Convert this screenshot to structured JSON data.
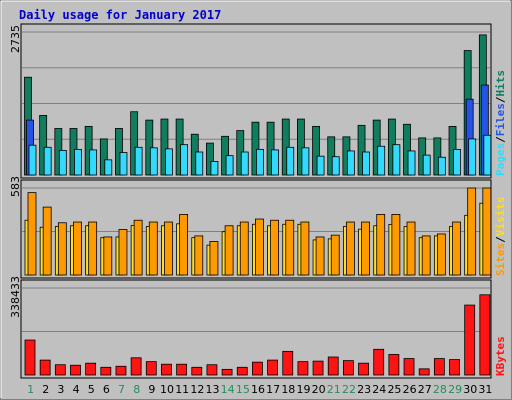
{
  "title": "Daily usage for January 2017",
  "colors": {
    "background": "#c0c0c0",
    "grid": "#808080",
    "hits": "#117d5f",
    "files": "#2553e6",
    "pages": "#33d9ff",
    "visits": "#ff9900",
    "sites": "#ffde22",
    "kbytes": "#ff1414",
    "weekday_label": "#000000",
    "weekend_label": "#2b8b5b"
  },
  "labels": {
    "pages": "Pages",
    "files": "Files",
    "hits": "Hits",
    "sites": "Sites",
    "visits": "Visits",
    "kbytes": "KBytes",
    "sep": "/"
  },
  "chart_data": [
    {
      "type": "bar",
      "panel": "hits-files-pages",
      "ymax_label": "2735",
      "ylim": [
        0,
        2735
      ],
      "categories": [
        "1",
        "2",
        "3",
        "4",
        "5",
        "6",
        "7",
        "8",
        "9",
        "10",
        "11",
        "12",
        "13",
        "14",
        "15",
        "16",
        "17",
        "18",
        "19",
        "20",
        "21",
        "22",
        "23",
        "24",
        "25",
        "26",
        "27",
        "28",
        "29",
        "30",
        "31"
      ],
      "weekend_days": [
        "1",
        "7",
        "8",
        "14",
        "15",
        "21",
        "22",
        "28",
        "29"
      ],
      "series": [
        {
          "name": "Hits",
          "values": [
            1870,
            1140,
            890,
            890,
            930,
            690,
            890,
            1210,
            1050,
            1070,
            1070,
            780,
            610,
            740,
            850,
            1010,
            1010,
            1070,
            1070,
            930,
            730,
            730,
            950,
            1050,
            1070,
            970,
            710,
            710,
            930,
            2380,
            2680
          ]
        },
        {
          "name": "Files",
          "values": [
            1050,
            0,
            0,
            0,
            0,
            0,
            0,
            0,
            0,
            0,
            0,
            0,
            0,
            0,
            0,
            0,
            0,
            0,
            0,
            0,
            0,
            0,
            0,
            0,
            0,
            0,
            0,
            0,
            0,
            1450,
            1720
          ]
        },
        {
          "name": "Pages",
          "values": [
            570,
            530,
            470,
            490,
            480,
            290,
            430,
            530,
            520,
            500,
            580,
            440,
            260,
            370,
            440,
            490,
            480,
            530,
            520,
            360,
            350,
            460,
            440,
            550,
            580,
            460,
            380,
            340,
            490,
            690,
            760
          ]
        }
      ]
    },
    {
      "type": "bar",
      "panel": "visits-sites",
      "ymax_label": "583",
      "ylim": [
        0,
        583
      ],
      "categories": [
        "1",
        "2",
        "3",
        "4",
        "5",
        "6",
        "7",
        "8",
        "9",
        "10",
        "11",
        "12",
        "13",
        "14",
        "15",
        "16",
        "17",
        "18",
        "19",
        "20",
        "21",
        "22",
        "23",
        "24",
        "25",
        "26",
        "27",
        "28",
        "29",
        "30",
        "31"
      ],
      "series": [
        {
          "name": "Visits",
          "values": [
            552,
            455,
            350,
            355,
            355,
            255,
            305,
            367,
            355,
            355,
            406,
            262,
            225,
            330,
            355,
            375,
            367,
            367,
            355,
            255,
            267,
            355,
            355,
            406,
            406,
            355,
            262,
            275,
            355,
            583,
            583
          ]
        },
        {
          "name": "Sites",
          "values": [
            367,
            320,
            325,
            330,
            330,
            250,
            255,
            332,
            325,
            330,
            343,
            250,
            200,
            290,
            330,
            340,
            330,
            340,
            340,
            235,
            242,
            325,
            307,
            330,
            339,
            325,
            250,
            262,
            325,
            400,
            481
          ]
        }
      ]
    },
    {
      "type": "bar",
      "panel": "kbytes",
      "ymax_label": "338433",
      "ylim": [
        0,
        338433
      ],
      "categories": [
        "1",
        "2",
        "3",
        "4",
        "5",
        "6",
        "7",
        "8",
        "9",
        "10",
        "11",
        "12",
        "13",
        "14",
        "15",
        "16",
        "17",
        "18",
        "19",
        "20",
        "21",
        "22",
        "23",
        "24",
        "25",
        "26",
        "27",
        "28",
        "29",
        "30",
        "31"
      ],
      "series": [
        {
          "name": "KBytes",
          "values": [
            136000,
            58000,
            40000,
            38000,
            46000,
            30000,
            34000,
            67000,
            52000,
            42000,
            42000,
            30000,
            40000,
            22000,
            30000,
            50000,
            58000,
            92000,
            52000,
            54000,
            70000,
            56000,
            46000,
            100000,
            80000,
            64000,
            24000,
            64000,
            60000,
            272000,
            312000
          ]
        }
      ]
    }
  ]
}
